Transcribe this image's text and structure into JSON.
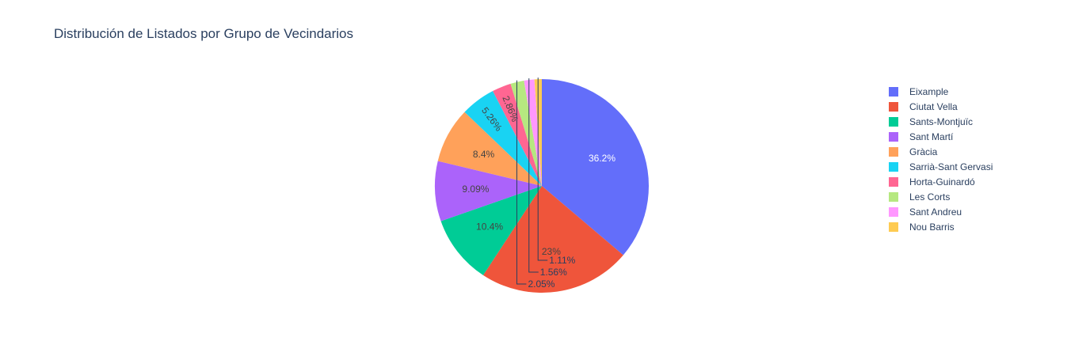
{
  "chart_data": {
    "type": "pie",
    "title": "Distribución de Listados por Grupo de Vecindarios",
    "categories": [
      "Eixample",
      "Ciutat Vella",
      "Sants-Montjuïc",
      "Sant Martí",
      "Gràcia",
      "Sarrià-Sant Gervasi",
      "Horta-Guinardó",
      "Les Corts",
      "Sant Andreu",
      "Nou Barris"
    ],
    "values": [
      36.2,
      23,
      10.4,
      9.09,
      8.4,
      5.26,
      2.86,
      2.05,
      1.56,
      1.11
    ],
    "labels": [
      "36.2%",
      "23%",
      "10.4%",
      "9.09%",
      "8.4%",
      "5.26%",
      "2.86%",
      "2.05%",
      "1.56%",
      "1.11%"
    ],
    "colors": [
      "#636efa",
      "#EF553B",
      "#00cc96",
      "#ab63fa",
      "#FFA15A",
      "#19d3f3",
      "#FF6692",
      "#B6E880",
      "#FF97FF",
      "#FECB52"
    ],
    "legend_position": "right",
    "direction": "clockwise",
    "start": "top"
  }
}
